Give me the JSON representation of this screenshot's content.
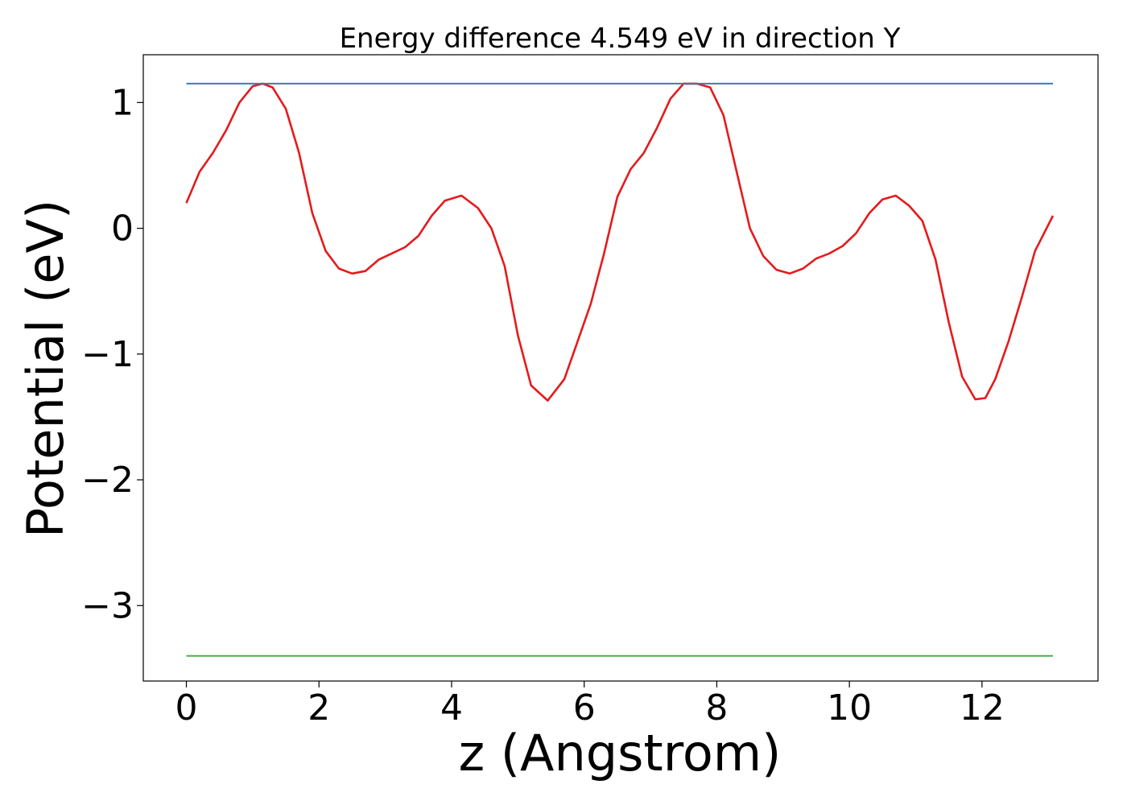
{
  "chart_data": {
    "type": "line",
    "title": "Energy difference 4.549 eV in direction Y",
    "xlabel": "z (Angstrom)",
    "ylabel": "Potential (eV)",
    "xlim": [
      -0.65,
      13.75
    ],
    "ylim": [
      -3.6,
      1.38
    ],
    "x_ticks": [
      0,
      2,
      4,
      6,
      8,
      10,
      12
    ],
    "x_tick_labels": [
      "0",
      "2",
      "4",
      "6",
      "8",
      "10",
      "12"
    ],
    "y_ticks": [
      1,
      0,
      -1,
      -2,
      -3
    ],
    "y_tick_labels": [
      "1",
      "0",
      "−1",
      "−2",
      "−3"
    ],
    "grid": false,
    "series": [
      {
        "color": "#e41a1c",
        "x": [
          0.0,
          0.2,
          0.4,
          0.6,
          0.8,
          1.0,
          1.15,
          1.3,
          1.5,
          1.7,
          1.9,
          2.1,
          2.3,
          2.5,
          2.7,
          2.9,
          3.1,
          3.3,
          3.5,
          3.7,
          3.9,
          4.15,
          4.4,
          4.6,
          4.8,
          5.0,
          5.2,
          5.45,
          5.7,
          5.9,
          6.1,
          6.3,
          6.5,
          6.7,
          6.9,
          7.1,
          7.3,
          7.5,
          7.7,
          7.9,
          8.1,
          8.3,
          8.5,
          8.7,
          8.9,
          9.1,
          9.3,
          9.5,
          9.7,
          9.9,
          10.1,
          10.3,
          10.5,
          10.7,
          10.9,
          11.1,
          11.3,
          11.5,
          11.7,
          11.9,
          12.05,
          12.2,
          12.4,
          12.6,
          12.8,
          13.07
        ],
        "y": [
          0.2,
          0.45,
          0.6,
          0.78,
          1.0,
          1.13,
          1.15,
          1.12,
          0.95,
          0.6,
          0.12,
          -0.18,
          -0.32,
          -0.36,
          -0.34,
          -0.25,
          -0.2,
          -0.15,
          -0.06,
          0.1,
          0.22,
          0.26,
          0.16,
          0.0,
          -0.3,
          -0.85,
          -1.25,
          -1.37,
          -1.2,
          -0.9,
          -0.6,
          -0.2,
          0.25,
          0.47,
          0.6,
          0.8,
          1.03,
          1.15,
          1.15,
          1.12,
          0.9,
          0.45,
          0.0,
          -0.22,
          -0.33,
          -0.36,
          -0.32,
          -0.24,
          -0.2,
          -0.14,
          -0.04,
          0.12,
          0.23,
          0.26,
          0.18,
          0.06,
          -0.25,
          -0.75,
          -1.18,
          -1.36,
          -1.35,
          -1.2,
          -0.9,
          -0.55,
          -0.18,
          0.1
        ]
      },
      {
        "color": "#377eb8",
        "x": [
          0.0,
          13.07
        ],
        "y": [
          1.15,
          1.15
        ]
      },
      {
        "color": "#4daf4a",
        "x": [
          0.0,
          13.07
        ],
        "y": [
          -3.4,
          -3.4
        ]
      }
    ]
  }
}
